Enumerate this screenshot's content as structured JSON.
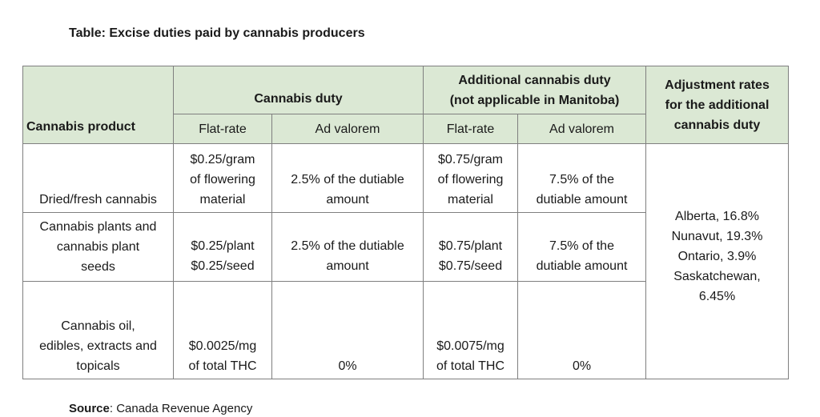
{
  "title": "Table: Excise duties paid by cannabis producers",
  "headers": {
    "product": "Cannabis product",
    "cannabis_duty": "Cannabis duty",
    "additional_duty_line1": "Additional cannabis duty",
    "additional_duty_line2": "(not applicable in Manitoba)",
    "adjustment_line1": "Adjustment rates",
    "adjustment_line2": "for the additional",
    "adjustment_line3": "cannabis duty",
    "flat_rate": "Flat-rate",
    "ad_valorem": "Ad valorem"
  },
  "rows": [
    {
      "product": "Dried/fresh cannabis",
      "duty_flat": [
        "$0.25/gram",
        "of flowering",
        "material"
      ],
      "duty_adval": [
        "2.5% of the dutiable",
        "amount"
      ],
      "add_flat": [
        "$0.75/gram",
        "of flowering",
        "material"
      ],
      "add_adval": [
        "7.5% of the",
        "dutiable amount"
      ]
    },
    {
      "product": [
        "Cannabis plants and",
        "cannabis plant",
        "seeds"
      ],
      "duty_flat": [
        "$0.25/plant",
        "$0.25/seed"
      ],
      "duty_adval": [
        "2.5% of the dutiable",
        "amount"
      ],
      "add_flat": [
        "$0.75/plant",
        "$0.75/seed"
      ],
      "add_adval": [
        "7.5% of the",
        "dutiable amount"
      ]
    },
    {
      "product": [
        "Cannabis oil,",
        "edibles, extracts and",
        "topicals"
      ],
      "duty_flat": [
        "$0.0025/mg",
        "of total THC"
      ],
      "duty_adval": "0%",
      "add_flat": [
        "$0.0075/mg",
        "of total THC"
      ],
      "add_adval": "0%"
    }
  ],
  "adjustment_rates": [
    "Alberta, 16.8%",
    "Nunavut, 19.3%",
    "Ontario, 3.9%",
    "Saskatchewan,",
    "6.45%"
  ],
  "source": {
    "label": "Source",
    "text": ": Canada Revenue Agency"
  }
}
